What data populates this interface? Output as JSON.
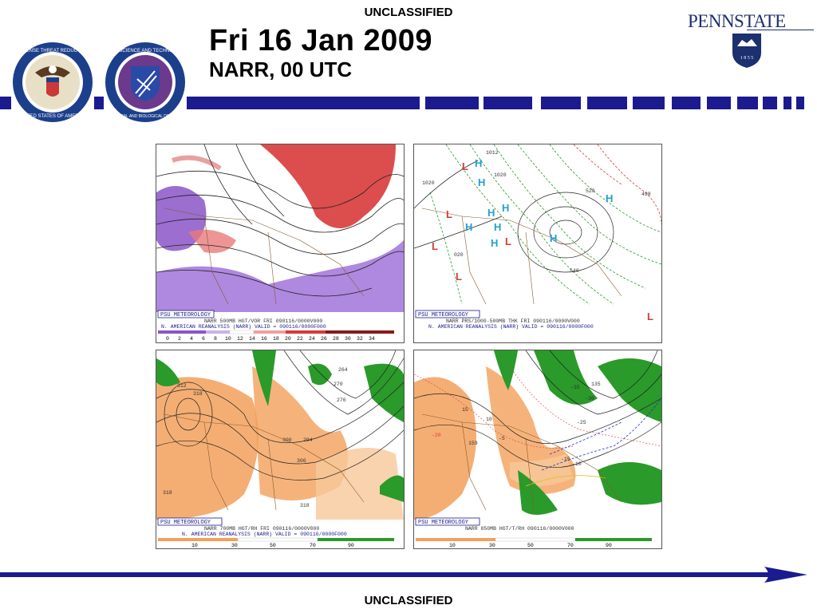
{
  "header": {
    "classification_top": "UNCLASSIFIED",
    "title": "Fri 16 Jan 2009",
    "subtitle": "NARR, 00 UTC",
    "psu_name": "PENNSTATE",
    "psu_year": "1 8 5 5",
    "seal_dtra_text": "DEFENSE THREAT REDUCTION AGENCY · UNITED STATES OF AMERICA",
    "seal_jsto_text": "JOINT SCIENCE AND TECHNOLOGY OFFICE · CHEMICAL AND BIOLOGICAL DEFENSE"
  },
  "footer": {
    "classification_bottom": "UNCLASSIFIED"
  },
  "colors": {
    "navy": "#1b1b8f",
    "psu_blue": "#1c2f6e",
    "vort_red": "#d83a3a",
    "vort_purple": "#8a55c8",
    "rh_orange": "#f2a05a",
    "rh_green": "#2a9a2a"
  },
  "panels": {
    "p1": {
      "badge": "PSU METEOROLOGY",
      "line1": "NARR 500MB HGT/VOR FRI 090116/0000V000",
      "line2": "N. AMERICAN REANALYSIS (NARR) VALID = 090116/0000F000",
      "scale": [
        "0",
        "2",
        "4",
        "6",
        "8",
        "10",
        "12",
        "14",
        "16",
        "18",
        "20",
        "22",
        "24",
        "26",
        "28",
        "30",
        "32",
        "34"
      ]
    },
    "p2": {
      "badge": "PSU METEOROLOGY",
      "line1": "NARR PRS/1000-500MB THK FRI 090116/0000V000",
      "line2": "N. AMERICAN REANALYSIS (NARR) VALID = 090116/0000F000",
      "labels": [
        "1020",
        "1020",
        "1012",
        "020",
        "528",
        "540",
        "498"
      ]
    },
    "p3": {
      "badge": "PSU METEOROLOGY",
      "line1": "NARR 700MB HGT/RH FRI 090116/0000V000",
      "line2": "N. AMERICAN REANALYSIS (NARR) VALID = 090116/0000F000",
      "scale": [
        "10",
        "30",
        "50",
        "70",
        "90"
      ],
      "labels": [
        "264",
        "270",
        "276",
        "312",
        "318",
        "294",
        "300",
        "306",
        "318",
        "318"
      ]
    },
    "p4": {
      "badge": "PSU METEOROLOGY",
      "line1": "NARR 850MB HGT/T/RH 090116/0000V000",
      "scale": [
        "10",
        "30",
        "50",
        "70",
        "90"
      ],
      "labels": [
        "135",
        "-35",
        "-30",
        "-25",
        "-10",
        "-15",
        "159",
        "-20",
        "-5",
        "10",
        "15"
      ]
    }
  }
}
